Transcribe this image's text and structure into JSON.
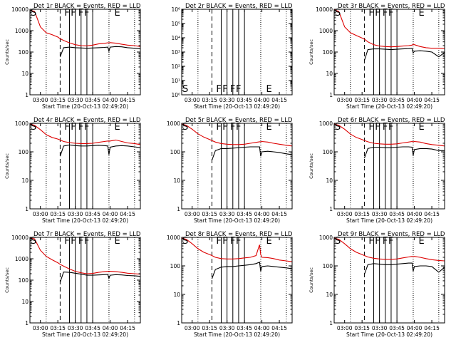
{
  "figure": {
    "x_tick_labels": [
      "03:00",
      "03:15",
      "03:30",
      "03:45",
      "04:00",
      "04:15"
    ],
    "x_tick_minutes": [
      0,
      15,
      30,
      45,
      60,
      75
    ],
    "x_range_minutes": [
      -9,
      86
    ],
    "colors": {
      "events": "#000000",
      "lld": "#dd0000",
      "frame": "#000000"
    },
    "dotted_line_minutes": [
      5,
      59,
      81
    ],
    "dashed_line_minutes": [
      17
    ],
    "solid_line_minutes": [
      25,
      30,
      35,
      40,
      45
    ],
    "marker_letters": [
      "S",
      "F",
      "F",
      "F",
      "F",
      "E"
    ],
    "marker_minutes": [
      -9,
      20,
      25.5,
      32,
      37,
      63
    ]
  },
  "chart_data": [
    {
      "id": "det1r",
      "type": "line",
      "title": "Det 1r BLACK = Events, RED = LLD",
      "ylabel": "Counts/sec",
      "xlabel": "Start Time (20-Oct-13 02:49:20)",
      "yscale": "log",
      "ylim": [
        1,
        10000
      ],
      "y_tick_labels": [
        "1",
        "10",
        "100",
        "1000",
        "10000"
      ],
      "x_minutes": [
        -9,
        -5,
        0,
        5,
        10,
        15,
        17,
        20,
        25,
        30,
        35,
        40,
        45,
        50,
        55,
        58,
        59,
        60,
        65,
        70,
        75,
        81,
        86
      ],
      "series": [
        {
          "name": "Events",
          "values": [
            null,
            null,
            null,
            null,
            null,
            null,
            60,
            160,
            170,
            160,
            155,
            150,
            155,
            160,
            165,
            170,
            110,
            170,
            180,
            175,
            160,
            150,
            140
          ]
        },
        {
          "name": "LLD",
          "values": [
            9000,
            8000,
            1500,
            800,
            650,
            500,
            420,
            350,
            270,
            220,
            200,
            195,
            210,
            240,
            255,
            270,
            270,
            275,
            260,
            230,
            210,
            200,
            180
          ]
        }
      ]
    },
    {
      "id": "det2r",
      "type": "line",
      "title": "Det 2r BLACK = Events, RED = LLD",
      "ylabel": "",
      "xlabel": "Start Time (20-Oct-13 02:49:20)",
      "yscale": "log",
      "ylim": [
        1,
        1000000
      ],
      "y_tick_labels": [
        "10⁰",
        "10¹",
        "10²",
        "10³",
        "10⁴",
        "10⁵",
        "10⁶"
      ],
      "x_minutes": [],
      "series": []
    },
    {
      "id": "det3r",
      "type": "line",
      "title": "Det 3r BLACK = Events, RED = LLD",
      "ylabel": "Counts/sec",
      "xlabel": "Start Time (20-Oct-13 02:49:20)",
      "yscale": "log",
      "ylim": [
        1,
        10000
      ],
      "y_tick_labels": [
        "1",
        "10",
        "100",
        "1000",
        "10000"
      ],
      "x_minutes": [
        -9,
        -5,
        0,
        5,
        10,
        15,
        17,
        20,
        25,
        30,
        35,
        40,
        45,
        50,
        55,
        58,
        59,
        60,
        65,
        70,
        75,
        81,
        86
      ],
      "series": [
        {
          "name": "Events",
          "values": [
            null,
            null,
            null,
            null,
            null,
            null,
            40,
            130,
            140,
            140,
            135,
            130,
            135,
            140,
            145,
            150,
            90,
            110,
            115,
            110,
            100,
            60,
            95
          ]
        },
        {
          "name": "LLD",
          "values": [
            9500,
            8000,
            1500,
            800,
            600,
            450,
            400,
            300,
            220,
            190,
            180,
            175,
            180,
            190,
            200,
            210,
            230,
            220,
            180,
            160,
            150,
            150,
            145
          ]
        }
      ]
    },
    {
      "id": "det4r",
      "type": "line",
      "title": "Det 4r BLACK = Events, RED = LLD",
      "ylabel": "Counts/sec",
      "xlabel": "Start Time (20-Oct-13 02:49:20)",
      "yscale": "log",
      "ylim": [
        1,
        1000
      ],
      "y_tick_labels": [
        "1",
        "10",
        "100",
        "1000"
      ],
      "x_minutes": [
        -9,
        -5,
        0,
        5,
        10,
        15,
        17,
        20,
        25,
        30,
        35,
        40,
        45,
        50,
        55,
        58,
        59,
        60,
        65,
        70,
        75,
        81,
        86
      ],
      "series": [
        {
          "name": "Events",
          "values": [
            null,
            null,
            null,
            null,
            null,
            null,
            70,
            160,
            175,
            165,
            160,
            160,
            165,
            170,
            165,
            160,
            80,
            145,
            160,
            165,
            160,
            150,
            140
          ]
        },
        {
          "name": "LLD",
          "values": [
            950,
            850,
            600,
            400,
            320,
            280,
            260,
            230,
            210,
            200,
            195,
            195,
            200,
            215,
            230,
            240,
            235,
            240,
            260,
            230,
            205,
            195,
            180
          ]
        }
      ]
    },
    {
      "id": "det5r",
      "type": "line",
      "title": "Det 5r BLACK = Events, RED = LLD",
      "ylabel": "",
      "xlabel": "Start Time (20-Oct-13 02:49:20)",
      "yscale": "log",
      "ylim": [
        1,
        1000
      ],
      "y_tick_labels": [
        "1",
        "10",
        "100",
        "1000"
      ],
      "x_minutes": [
        -9,
        -5,
        0,
        5,
        10,
        15,
        17,
        20,
        25,
        30,
        35,
        40,
        45,
        50,
        55,
        58,
        59,
        60,
        65,
        70,
        75,
        81,
        86
      ],
      "series": [
        {
          "name": "Events",
          "values": [
            null,
            null,
            null,
            null,
            null,
            null,
            50,
            110,
            130,
            130,
            135,
            140,
            145,
            150,
            150,
            150,
            70,
            100,
            105,
            100,
            95,
            85,
            80
          ]
        },
        {
          "name": "LLD",
          "values": [
            950,
            850,
            620,
            430,
            330,
            270,
            250,
            220,
            195,
            185,
            180,
            180,
            185,
            200,
            215,
            225,
            225,
            230,
            220,
            200,
            185,
            170,
            160
          ]
        }
      ]
    },
    {
      "id": "det6r",
      "type": "line",
      "title": "Det 6r BLACK = Events, RED = LLD",
      "ylabel": "Counts/sec",
      "xlabel": "Start Time (20-Oct-13 02:49:20)",
      "yscale": "log",
      "ylim": [
        1,
        1000
      ],
      "y_tick_labels": [
        "1",
        "10",
        "100",
        "1000"
      ],
      "x_minutes": [
        -9,
        -5,
        0,
        5,
        10,
        15,
        17,
        20,
        25,
        30,
        35,
        40,
        45,
        50,
        55,
        58,
        59,
        60,
        65,
        70,
        75,
        81,
        86
      ],
      "series": [
        {
          "name": "Events",
          "values": [
            null,
            null,
            null,
            null,
            null,
            null,
            60,
            130,
            145,
            145,
            140,
            140,
            145,
            150,
            150,
            145,
            75,
            120,
            130,
            130,
            125,
            110,
            110
          ]
        },
        {
          "name": "LLD",
          "values": [
            950,
            850,
            620,
            420,
            320,
            270,
            250,
            225,
            200,
            190,
            185,
            185,
            190,
            205,
            220,
            230,
            225,
            230,
            220,
            195,
            180,
            170,
            160
          ]
        }
      ]
    },
    {
      "id": "det7r",
      "type": "line",
      "title": "Det 7r BLACK = Events, RED = LLD",
      "ylabel": "Counts/sec",
      "xlabel": "Start Time (20-Oct-13 02:49:20)",
      "yscale": "log",
      "ylim": [
        1,
        10000
      ],
      "y_tick_labels": [
        "1",
        "10",
        "100",
        "1000",
        "10000"
      ],
      "x_minutes": [
        -9,
        -5,
        0,
        5,
        10,
        15,
        17,
        20,
        25,
        30,
        35,
        40,
        45,
        50,
        55,
        58,
        59,
        60,
        65,
        70,
        75,
        81,
        86
      ],
      "series": [
        {
          "name": "Events",
          "values": [
            null,
            null,
            null,
            null,
            null,
            null,
            80,
            240,
            230,
            210,
            190,
            170,
            170,
            175,
            180,
            185,
            120,
            170,
            180,
            175,
            165,
            160,
            150
          ]
        },
        {
          "name": "LLD",
          "values": [
            9500,
            8500,
            2500,
            1300,
            900,
            650,
            550,
            450,
            330,
            260,
            220,
            200,
            205,
            230,
            250,
            260,
            260,
            260,
            250,
            230,
            210,
            200,
            190
          ]
        }
      ]
    },
    {
      "id": "det8r",
      "type": "line",
      "title": "Det 8r BLACK = Events, RED = LLD",
      "ylabel": "",
      "xlabel": "Start Time (20-Oct-13 02:49:20)",
      "yscale": "log",
      "ylim": [
        1,
        1000
      ],
      "y_tick_labels": [
        "1",
        "10",
        "100",
        "1000"
      ],
      "x_minutes": [
        -9,
        -5,
        0,
        5,
        10,
        15,
        17,
        20,
        25,
        30,
        35,
        40,
        45,
        50,
        55,
        57,
        58,
        59,
        60,
        65,
        70,
        75,
        81,
        86
      ],
      "series": [
        {
          "name": "Events",
          "values": [
            null,
            null,
            null,
            null,
            null,
            null,
            35,
            75,
            90,
            95,
            95,
            100,
            105,
            110,
            120,
            130,
            135,
            65,
            95,
            100,
            95,
            90,
            85,
            80
          ]
        },
        {
          "name": "LLD",
          "values": [
            950,
            850,
            600,
            400,
            300,
            250,
            230,
            200,
            180,
            175,
            175,
            180,
            190,
            200,
            230,
            420,
            550,
            250,
            200,
            195,
            180,
            160,
            150,
            140
          ]
        }
      ]
    },
    {
      "id": "det9r",
      "type": "line",
      "title": "Det 9r BLACK = Events, RED = LLD",
      "ylabel": "Counts/sec",
      "xlabel": "Start Time (20-Oct-13 02:49:20)",
      "yscale": "log",
      "ylim": [
        1,
        1000
      ],
      "y_tick_labels": [
        "1",
        "10",
        "100",
        "1000"
      ],
      "x_minutes": [
        -9,
        -5,
        0,
        5,
        10,
        15,
        17,
        20,
        25,
        30,
        35,
        40,
        45,
        50,
        55,
        58,
        59,
        60,
        65,
        70,
        75,
        81,
        86
      ],
      "series": [
        {
          "name": "Events",
          "values": [
            null,
            null,
            null,
            null,
            null,
            null,
            50,
            110,
            120,
            115,
            110,
            110,
            115,
            120,
            125,
            125,
            65,
            95,
            100,
            100,
            95,
            60,
            90
          ]
        },
        {
          "name": "LLD",
          "values": [
            950,
            850,
            600,
            400,
            300,
            250,
            230,
            205,
            185,
            175,
            170,
            170,
            175,
            190,
            205,
            215,
            210,
            215,
            200,
            180,
            165,
            155,
            150
          ]
        }
      ]
    }
  ]
}
